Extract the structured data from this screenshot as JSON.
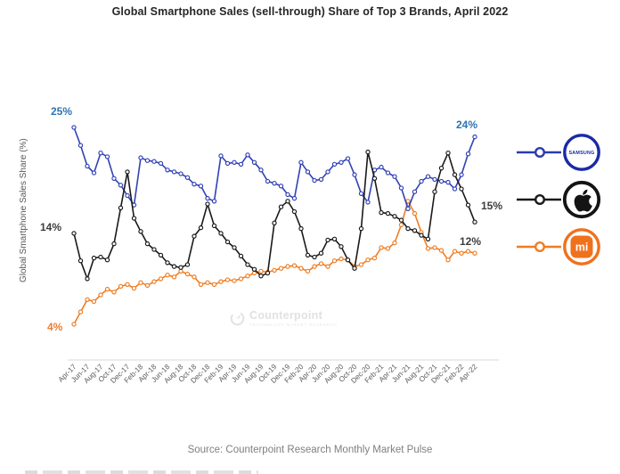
{
  "title": "Global Smartphone Sales (sell-through) Share of Top 3 Brands, April 2022",
  "y_axis_label": "Global Smartphone Sales Share (%)",
  "source": "Source: Counterpoint Research Monthly Market Pulse",
  "watermark": {
    "brand": "Counterpoint",
    "tagline": "Technology Market Research"
  },
  "annotations": {
    "samsung_start": "25%",
    "samsung_end": "24%",
    "apple_start": "14%",
    "apple_end": "15%",
    "xiaomi_start": "4%",
    "xiaomi_end": "12%"
  },
  "legend": {
    "samsung": {
      "label": "SAMSUNG",
      "color": "#1b2aa6"
    },
    "apple": {
      "label": "Apple",
      "color": "#141414"
    },
    "xiaomi": {
      "label": "mi",
      "color": "#f0711c"
    }
  },
  "chart_data": {
    "type": "line",
    "title": "Global Smartphone Sales (sell-through) Share of Top 3 Brands, April 2022",
    "xlabel": "",
    "ylabel": "Global Smartphone Sales Share (%)",
    "x_interval": "monthly",
    "x_range": [
      "Apr-17",
      "Apr-22"
    ],
    "ylim": [
      3,
      26
    ],
    "grid": false,
    "legend_position": "right",
    "x_tick_labels": [
      "Apr-17",
      "Jun-17",
      "Aug-17",
      "Oct-17",
      "Dec-17",
      "Feb-18",
      "Apr-18",
      "Jun-18",
      "Aug-18",
      "Oct-18",
      "Dec-18",
      "Feb-19",
      "Apr-19",
      "Jun-19",
      "Aug-19",
      "Oct-19",
      "Dec-19",
      "Feb-20",
      "Apr-20",
      "Jun-20",
      "Aug-20",
      "Oct-20",
      "Dec-20",
      "Feb-21",
      "Apr-21",
      "Jun-21",
      "Aug-21",
      "Oct-21",
      "Dec-21",
      "Feb-22",
      "Apr-22"
    ],
    "series": [
      {
        "name": "Samsung",
        "color": "#3142b5",
        "values": [
          25.0,
          23.1,
          20.9,
          20.2,
          22.3,
          21.9,
          19.6,
          18.9,
          17.8,
          16.8,
          21.8,
          21.5,
          21.4,
          21.2,
          20.5,
          20.3,
          20.1,
          19.7,
          19.0,
          18.8,
          17.5,
          17.2,
          22.0,
          21.2,
          21.3,
          21.1,
          22.1,
          21.3,
          20.5,
          19.3,
          19.1,
          18.8,
          17.9,
          17.5,
          21.3,
          20.3,
          19.4,
          19.5,
          20.3,
          21.1,
          21.3,
          21.7,
          20.0,
          18.0,
          17.1,
          20.5,
          20.8,
          20.2,
          19.8,
          18.6,
          16.4,
          18.2,
          19.3,
          19.8,
          19.5,
          19.3,
          19.2,
          18.5,
          20.0,
          22.2,
          24.0
        ]
      },
      {
        "name": "Apple",
        "color": "#1a1a1a",
        "values": [
          13.8,
          10.9,
          9.0,
          11.2,
          11.3,
          11.0,
          12.7,
          16.5,
          20.3,
          15.4,
          14.0,
          12.7,
          12.1,
          11.5,
          10.7,
          10.3,
          10.2,
          10.5,
          13.5,
          14.4,
          16.9,
          14.6,
          13.8,
          12.9,
          12.3,
          11.4,
          10.5,
          10.0,
          9.3,
          9.6,
          14.9,
          16.6,
          17.2,
          16.1,
          14.3,
          11.5,
          11.3,
          11.7,
          13.1,
          13.2,
          12.4,
          11.0,
          10.1,
          14.3,
          22.4,
          19.6,
          16.0,
          15.9,
          15.6,
          15.2,
          14.3,
          14.1,
          13.6,
          13.2,
          18.2,
          20.7,
          22.3,
          20.0,
          18.5,
          16.8,
          15.0
        ]
      },
      {
        "name": "Xiaomi",
        "color": "#ef7d22",
        "values": [
          4.2,
          5.5,
          6.8,
          6.6,
          7.3,
          7.9,
          7.6,
          8.2,
          8.4,
          8.0,
          8.6,
          8.3,
          8.7,
          9.0,
          9.4,
          9.2,
          9.8,
          9.5,
          9.2,
          8.4,
          8.6,
          8.4,
          8.7,
          8.9,
          8.8,
          9.0,
          9.3,
          9.6,
          9.8,
          9.7,
          9.9,
          10.1,
          10.3,
          10.4,
          10.1,
          9.8,
          10.3,
          10.6,
          10.3,
          10.9,
          11.1,
          11.0,
          10.3,
          10.5,
          11.0,
          11.2,
          12.3,
          12.2,
          12.8,
          14.7,
          17.2,
          15.9,
          13.9,
          12.2,
          12.3,
          12.0,
          11.0,
          11.9,
          11.7,
          11.9,
          11.7
        ]
      }
    ]
  }
}
